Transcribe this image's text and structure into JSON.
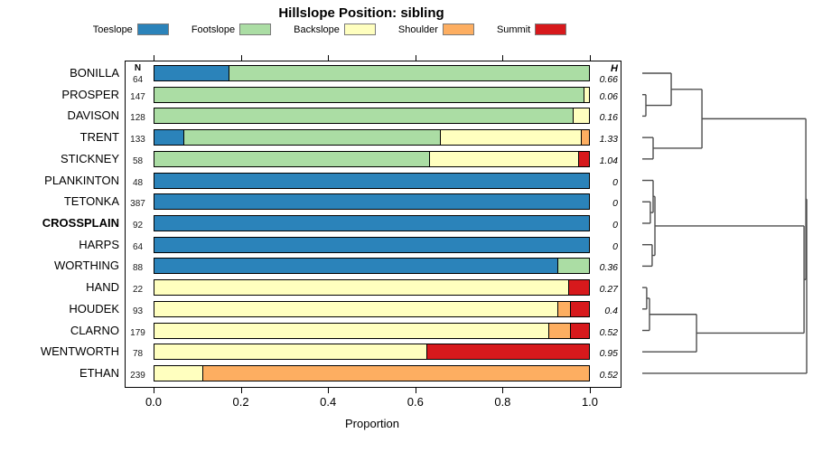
{
  "title": "Hillslope Position: sibling",
  "legend": [
    {
      "label": "Toeslope",
      "color": "#2B83BA"
    },
    {
      "label": "Footslope",
      "color": "#ABDDA4"
    },
    {
      "label": "Backslope",
      "color": "#FFFFBF"
    },
    {
      "label": "Shoulder",
      "color": "#FDAE61"
    },
    {
      "label": "Summit",
      "color": "#D7191C"
    }
  ],
  "columns": {
    "n_header": "N",
    "h_header": "H"
  },
  "axis": {
    "label": "Proportion",
    "ticks": [
      "0.0",
      "0.2",
      "0.4",
      "0.6",
      "0.8",
      "1.0"
    ],
    "tick_values": [
      0,
      0.2,
      0.4,
      0.6,
      0.8,
      1.0
    ]
  },
  "chart_data": {
    "type": "bar",
    "orientation": "horizontal",
    "stacked": true,
    "title": "Hillslope Position: sibling",
    "xlabel": "Proportion",
    "xlim": [
      0,
      1
    ],
    "categories": [
      "Toeslope",
      "Footslope",
      "Backslope",
      "Shoulder",
      "Summit"
    ],
    "category_colors": {
      "Toeslope": "#2B83BA",
      "Footslope": "#ABDDA4",
      "Backslope": "#FFFFBF",
      "Shoulder": "#FDAE61",
      "Summit": "#D7191C"
    },
    "rows": [
      {
        "name": "BONILLA",
        "n": "64",
        "h": "0.66",
        "bold": false,
        "segments": [
          {
            "cat": "Toeslope",
            "value": 0.17
          },
          {
            "cat": "Footslope",
            "value": 0.83
          }
        ]
      },
      {
        "name": "PROSPER",
        "n": "147",
        "h": "0.06",
        "bold": false,
        "segments": [
          {
            "cat": "Footslope",
            "value": 0.99
          },
          {
            "cat": "Backslope",
            "value": 0.01
          }
        ]
      },
      {
        "name": "DAVISON",
        "n": "128",
        "h": "0.16",
        "bold": false,
        "segments": [
          {
            "cat": "Footslope",
            "value": 0.965
          },
          {
            "cat": "Backslope",
            "value": 0.035
          }
        ]
      },
      {
        "name": "TRENT",
        "n": "133",
        "h": "1.33",
        "bold": false,
        "segments": [
          {
            "cat": "Toeslope",
            "value": 0.066
          },
          {
            "cat": "Footslope",
            "value": 0.594
          },
          {
            "cat": "Backslope",
            "value": 0.324
          },
          {
            "cat": "Shoulder",
            "value": 0.016
          }
        ]
      },
      {
        "name": "STICKNEY",
        "n": "58",
        "h": "1.04",
        "bold": false,
        "segments": [
          {
            "cat": "Footslope",
            "value": 0.635
          },
          {
            "cat": "Backslope",
            "value": 0.342
          },
          {
            "cat": "Summit",
            "value": 0.023
          }
        ]
      },
      {
        "name": "PLANKINTON",
        "n": "48",
        "h": "0",
        "bold": false,
        "segments": [
          {
            "cat": "Toeslope",
            "value": 1.0
          }
        ]
      },
      {
        "name": "TETONKA",
        "n": "387",
        "h": "0",
        "bold": false,
        "segments": [
          {
            "cat": "Toeslope",
            "value": 1.0
          }
        ]
      },
      {
        "name": "CROSSPLAIN",
        "n": "92",
        "h": "0",
        "bold": true,
        "segments": [
          {
            "cat": "Toeslope",
            "value": 1.0
          }
        ]
      },
      {
        "name": "HARPS",
        "n": "64",
        "h": "0",
        "bold": false,
        "segments": [
          {
            "cat": "Toeslope",
            "value": 1.0
          }
        ]
      },
      {
        "name": "WORTHING",
        "n": "88",
        "h": "0.36",
        "bold": false,
        "segments": [
          {
            "cat": "Toeslope",
            "value": 0.93
          },
          {
            "cat": "Footslope",
            "value": 0.07
          }
        ]
      },
      {
        "name": "HAND",
        "n": "22",
        "h": "0.27",
        "bold": false,
        "segments": [
          {
            "cat": "Backslope",
            "value": 0.954
          },
          {
            "cat": "Summit",
            "value": 0.046
          }
        ]
      },
      {
        "name": "HOUDEK",
        "n": "93",
        "h": "0.4",
        "bold": false,
        "segments": [
          {
            "cat": "Backslope",
            "value": 0.932
          },
          {
            "cat": "Shoulder",
            "value": 0.026
          },
          {
            "cat": "Summit",
            "value": 0.042
          }
        ]
      },
      {
        "name": "CLARNO",
        "n": "179",
        "h": "0.52",
        "bold": false,
        "segments": [
          {
            "cat": "Backslope",
            "value": 0.91
          },
          {
            "cat": "Shoulder",
            "value": 0.048
          },
          {
            "cat": "Summit",
            "value": 0.042
          }
        ]
      },
      {
        "name": "WENTWORTH",
        "n": "78",
        "h": "0.95",
        "bold": false,
        "segments": [
          {
            "cat": "Backslope",
            "value": 0.628
          },
          {
            "cat": "Summit",
            "value": 0.372
          }
        ]
      },
      {
        "name": "ETHAN",
        "n": "239",
        "h": "0.52",
        "bold": false,
        "segments": [
          {
            "cat": "Backslope",
            "value": 0.11
          },
          {
            "cat": "Shoulder",
            "value": 0.89
          }
        ]
      }
    ]
  },
  "dendrogram": {
    "leaves": [
      "BONILLA",
      "PROSPER",
      "DAVISON",
      "TRENT",
      "STICKNEY",
      "PLANKINTON",
      "TETONKA",
      "CROSSPLAIN",
      "HARPS",
      "WORTHING",
      "HAND",
      "HOUDEK",
      "CLARNO",
      "WENTWORTH",
      "ETHAN"
    ],
    "merges": [
      {
        "a": "PROSPER",
        "b": "DAVISON",
        "h": 0.022
      },
      {
        "a": "BONILLA",
        "b": "@0",
        "h": 0.176
      },
      {
        "a": "TRENT",
        "b": "STICKNEY",
        "h": 0.066
      },
      {
        "a": "@1",
        "b": "@2",
        "h": 0.363
      },
      {
        "a": "TETONKA",
        "b": "CROSSPLAIN",
        "h": 0.049
      },
      {
        "a": "PLANKINTON",
        "b": "@4",
        "h": 0.066
      },
      {
        "a": "HARPS",
        "b": "WORTHING",
        "h": 0.06
      },
      {
        "a": "@5",
        "b": "@6",
        "h": 0.077
      },
      {
        "a": "HAND",
        "b": "HOUDEK",
        "h": 0.027
      },
      {
        "a": "@8",
        "b": "CLARNO",
        "h": 0.044
      },
      {
        "a": "@9",
        "b": "WENTWORTH",
        "h": 0.33
      },
      {
        "a": "@7",
        "b": "@10",
        "h": 0.984
      },
      {
        "a": "@3",
        "b": "@11",
        "h": 0.995
      },
      {
        "a": "@12",
        "b": "ETHAN",
        "h": 1.0
      }
    ]
  }
}
